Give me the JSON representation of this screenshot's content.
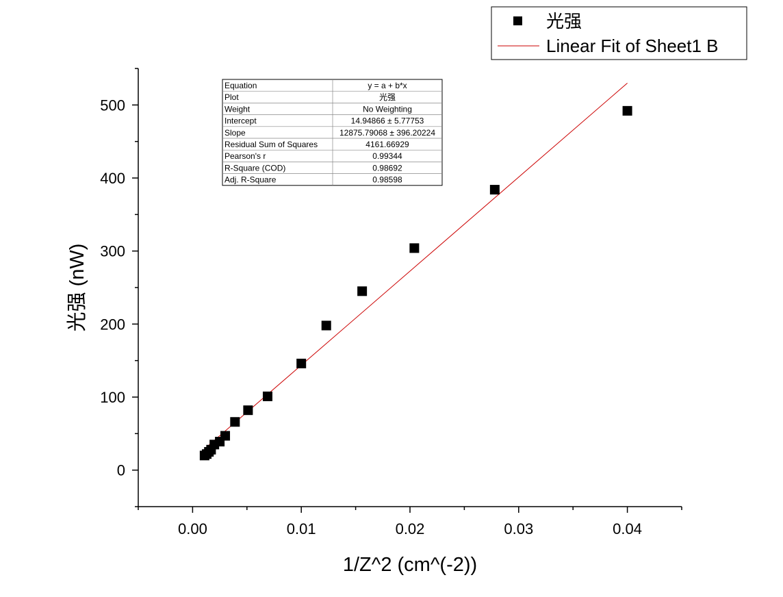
{
  "chart_data": {
    "type": "scatter",
    "title": "",
    "xlabel": "1/Z^2 (cm^(-2))",
    "ylabel": "光强 (nW)",
    "xlim": [
      -0.005,
      0.045
    ],
    "ylim": [
      -50,
      550
    ],
    "x_ticks": [
      "0.00",
      "0.01",
      "0.02",
      "0.03",
      "0.04"
    ],
    "y_ticks": [
      "0",
      "100",
      "200",
      "300",
      "400",
      "500"
    ],
    "grid": false,
    "legend_position": "top-right, outside plot",
    "series": [
      {
        "name": "光强",
        "marker": "square",
        "color": "#000000",
        "x": [
          0.0011,
          0.0013,
          0.0015,
          0.0017,
          0.002,
          0.0025,
          0.003,
          0.0039,
          0.0051,
          0.0069,
          0.01,
          0.0123,
          0.0156,
          0.0204,
          0.0278,
          0.04
        ],
        "y": [
          20,
          22,
          25,
          28,
          35,
          39,
          47,
          66,
          82,
          101,
          146,
          198,
          245,
          304,
          384,
          492
        ]
      },
      {
        "name": "Linear Fit of Sheet1 B",
        "type": "line",
        "color": "#cc0000",
        "intercept": 14.94866,
        "slope": 12875.79068,
        "x_range": [
          0.0011,
          0.04
        ]
      }
    ],
    "stats_table": [
      [
        "Equation",
        "y = a + b*x"
      ],
      [
        "Plot",
        "光强"
      ],
      [
        "Weight",
        "No Weighting"
      ],
      [
        "Intercept",
        "14.94866 ± 5.77753"
      ],
      [
        "Slope",
        "12875.79068 ± 396.20224"
      ],
      [
        "Residual Sum of Squares",
        "4161.66929"
      ],
      [
        "Pearson's r",
        "0.99344"
      ],
      [
        "R-Square (COD)",
        "0.98692"
      ],
      [
        "Adj. R-Square",
        "0.98598"
      ]
    ]
  }
}
